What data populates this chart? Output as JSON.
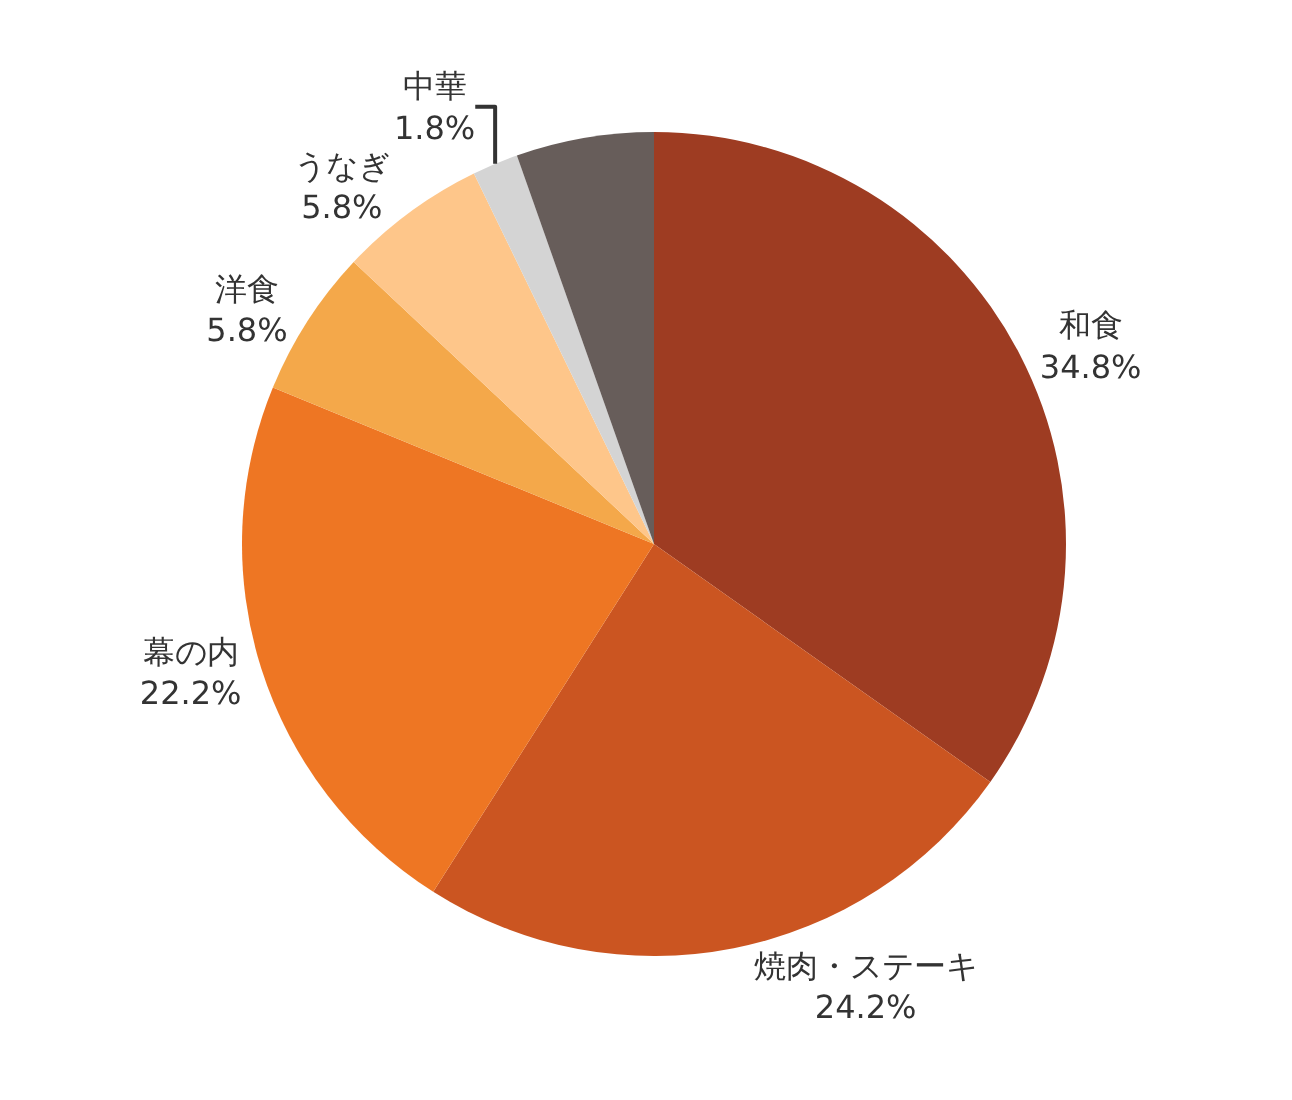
{
  "chart_data": {
    "type": "pie",
    "categories": [
      "和食",
      "焼肉・ステーキ",
      "幕の内",
      "洋食",
      "うなぎ",
      "中華",
      null
    ],
    "values": [
      34.8,
      24.2,
      22.2,
      5.8,
      5.8,
      1.8,
      5.4
    ],
    "value_labels": [
      "34.8%",
      "24.2%",
      "22.2%",
      "5.8%",
      "5.8%",
      "1.8%",
      null
    ],
    "colors": [
      "#9e3c22",
      "#cb5521",
      "#ee7623",
      "#f4a84a",
      "#fec68a",
      "#d4d4d4",
      "#675d5a"
    ],
    "legend": false
  }
}
